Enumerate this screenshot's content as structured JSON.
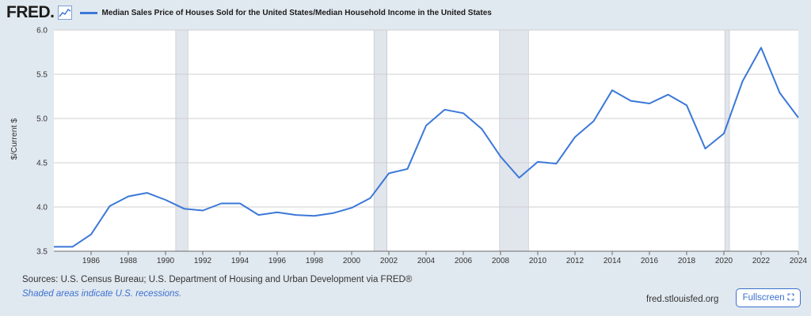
{
  "header": {
    "logo_text": "FRED",
    "logo_dot": "."
  },
  "colors": {
    "series": "#3b78d8",
    "recession": "#e1e5ec",
    "grid": "#cfcfcf"
  },
  "chart_data": {
    "type": "line",
    "title": "Median Sales Price of Houses Sold for the United States/Median Household Income in the United States",
    "ylabel": "$/Current $",
    "xlabel": "",
    "ylim": [
      3.5,
      6.0
    ],
    "xlim": [
      1984,
      2024
    ],
    "yticks": [
      3.5,
      4.0,
      4.5,
      5.0,
      5.5,
      6.0
    ],
    "ytick_labels": [
      "3.5",
      "4.0",
      "4.5",
      "5.0",
      "5.5",
      "6.0"
    ],
    "xticks": [
      1986,
      1988,
      1990,
      1992,
      1994,
      1996,
      1998,
      2000,
      2002,
      2004,
      2006,
      2008,
      2010,
      2012,
      2014,
      2016,
      2018,
      2020,
      2022,
      2024
    ],
    "xtick_labels": [
      "1986",
      "1988",
      "1990",
      "1992",
      "1994",
      "1996",
      "1998",
      "2000",
      "2002",
      "2004",
      "2006",
      "2008",
      "2010",
      "2012",
      "2014",
      "2016",
      "2018",
      "2020",
      "2022",
      "2024"
    ],
    "recessions": [
      [
        1990.55,
        1991.2
      ],
      [
        2001.2,
        2001.9
      ],
      [
        2007.95,
        2009.5
      ],
      [
        2020.05,
        2020.3
      ]
    ],
    "series": [
      {
        "name": "Median Sales Price of Houses Sold for the United States/Median Household Income in the United States",
        "x": [
          1984,
          1985,
          1986,
          1987,
          1988,
          1989,
          1990,
          1991,
          1992,
          1993,
          1994,
          1995,
          1996,
          1997,
          1998,
          1999,
          2000,
          2001,
          2002,
          2003,
          2004,
          2005,
          2006,
          2007,
          2008,
          2009,
          2010,
          2011,
          2012,
          2013,
          2014,
          2015,
          2016,
          2017,
          2018,
          2019,
          2020,
          2021,
          2022,
          2023,
          2024
        ],
        "values": [
          3.55,
          3.55,
          3.69,
          4.01,
          4.12,
          4.16,
          4.08,
          3.98,
          3.96,
          4.04,
          4.04,
          3.91,
          3.94,
          3.91,
          3.9,
          3.93,
          3.99,
          4.1,
          4.38,
          4.43,
          4.92,
          5.1,
          5.06,
          4.88,
          4.57,
          4.33,
          4.51,
          4.49,
          4.79,
          4.97,
          5.32,
          5.2,
          5.17,
          5.27,
          5.15,
          4.66,
          4.83,
          5.42,
          5.8,
          5.29,
          5.01
        ]
      }
    ]
  },
  "footer": {
    "sources": "Sources: U.S. Census Bureau; U.S. Department of Housing and Urban Development via FRED®",
    "note": "Shaded areas indicate U.S. recessions.",
    "url": "fred.stlouisfed.org",
    "fullscreen_label": "Fullscreen",
    "fullscreen_icon": "⛶"
  }
}
